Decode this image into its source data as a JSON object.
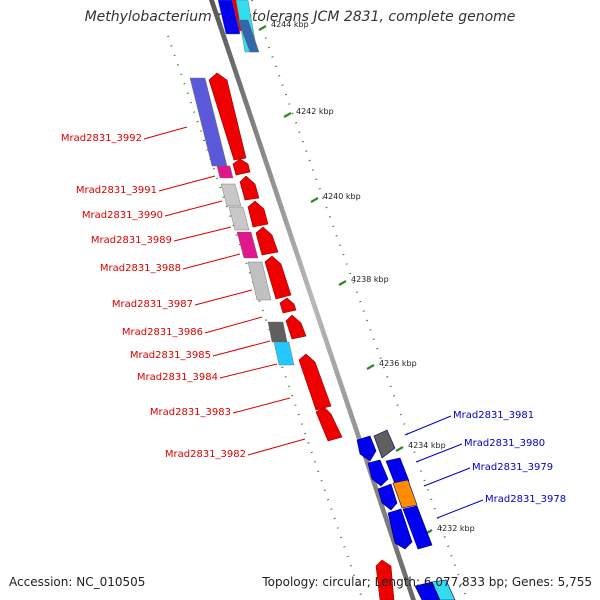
{
  "title": "Methylobacterium radiotolerans JCM 2831, complete genome",
  "accession": "Accession: NC_010505",
  "summary": "Topology: circular; Length: 6,077,833 bp; Genes: 5,755",
  "colors": {
    "backbone": "#888888",
    "tick": "#2a8a2a",
    "forward_label": "#dd0000",
    "reverse_label": "#0000cc"
  },
  "ticks": [
    {
      "label": "4244 kbp"
    },
    {
      "label": "4242 kbp"
    },
    {
      "label": "4240 kbp"
    },
    {
      "label": "4238 kbp"
    },
    {
      "label": "4236 kbp"
    },
    {
      "label": "4234 kbp"
    },
    {
      "label": "4232 kbp"
    }
  ],
  "gene_labels": [
    {
      "name": "Mrad2831_3992",
      "strand": "forward"
    },
    {
      "name": "Mrad2831_3991",
      "strand": "forward"
    },
    {
      "name": "Mrad2831_3990",
      "strand": "forward"
    },
    {
      "name": "Mrad2831_3989",
      "strand": "forward"
    },
    {
      "name": "Mrad2831_3988",
      "strand": "forward"
    },
    {
      "name": "Mrad2831_3987",
      "strand": "forward"
    },
    {
      "name": "Mrad2831_3986",
      "strand": "forward"
    },
    {
      "name": "Mrad2831_3985",
      "strand": "forward"
    },
    {
      "name": "Mrad2831_3984",
      "strand": "forward"
    },
    {
      "name": "Mrad2831_3983",
      "strand": "forward"
    },
    {
      "name": "Mrad2831_3982",
      "strand": "forward"
    },
    {
      "name": "Mrad2831_3981",
      "strand": "reverse"
    },
    {
      "name": "Mrad2831_3980",
      "strand": "reverse"
    },
    {
      "name": "Mrad2831_3979",
      "strand": "reverse"
    },
    {
      "name": "Mrad2831_3978",
      "strand": "reverse"
    }
  ]
}
